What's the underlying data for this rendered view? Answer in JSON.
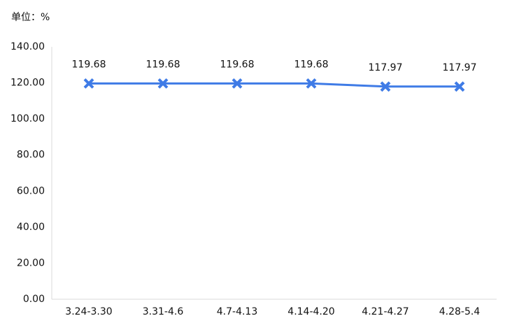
{
  "chart_data": {
    "type": "line",
    "unit_label": "单位：%",
    "categories": [
      "3.24-3.30",
      "3.31-4.6",
      "4.7-4.13",
      "4.14-4.20",
      "4.21-4.27",
      "4.28-5.4"
    ],
    "values": [
      119.68,
      119.68,
      119.68,
      119.68,
      117.97,
      117.97
    ],
    "color": "#3f7be6",
    "marker": "x",
    "grid": false,
    "ylim": [
      0,
      140
    ],
    "yticks": [
      {
        "value": 0,
        "label": "0.00"
      },
      {
        "value": 20,
        "label": "20.00"
      },
      {
        "value": 40,
        "label": "40.00"
      },
      {
        "value": 60,
        "label": "60.00"
      },
      {
        "value": 80,
        "label": "80.00"
      },
      {
        "value": 100,
        "label": "100.00"
      },
      {
        "value": 120,
        "label": "120.00"
      },
      {
        "value": 140,
        "label": "140.00"
      }
    ]
  }
}
